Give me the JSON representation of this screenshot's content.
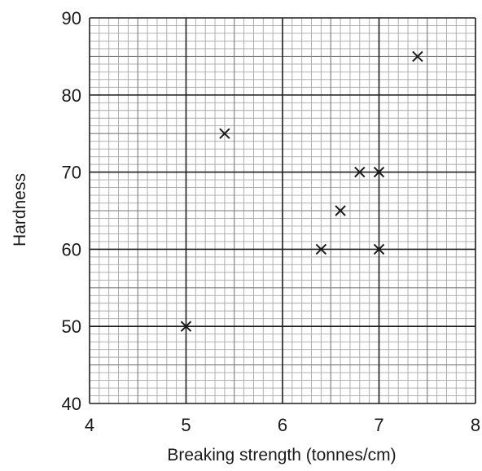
{
  "chart_data": {
    "type": "scatter",
    "title": "",
    "xlabel": "Breaking strength (tonnes/cm)",
    "ylabel": "Hardness",
    "xlim": [
      4,
      8
    ],
    "ylim": [
      40,
      90
    ],
    "xticks": [
      "4",
      "5",
      "6",
      "7",
      "8"
    ],
    "yticks": [
      "40",
      "50",
      "60",
      "70",
      "80",
      "90"
    ],
    "grid": true,
    "marker": "cross",
    "series": [
      {
        "points": [
          {
            "x": 5.0,
            "y": 50
          },
          {
            "x": 5.4,
            "y": 75
          },
          {
            "x": 6.4,
            "y": 60
          },
          {
            "x": 6.6,
            "y": 65
          },
          {
            "x": 6.8,
            "y": 70
          },
          {
            "x": 7.0,
            "y": 70
          },
          {
            "x": 7.0,
            "y": 60
          },
          {
            "x": 7.4,
            "y": 85
          }
        ]
      }
    ],
    "colors": {
      "minor_grid": "#a8a8a8",
      "mid_grid": "#7a7a7a",
      "major_grid": "#1e1e1e",
      "marker": "#1a1a1a"
    }
  }
}
